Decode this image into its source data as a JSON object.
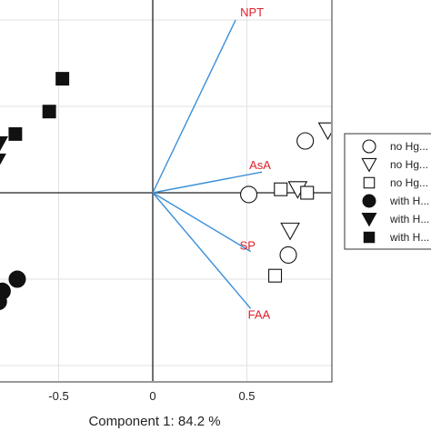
{
  "chart_data": {
    "type": "scatter",
    "title": "",
    "xlabel": "Component 1: 84.2 %",
    "ylabel": "",
    "xlim": [
      -0.82,
      0.92
    ],
    "ylim": [
      -1.0,
      1.0
    ],
    "x_ticks": [
      -0.5,
      0,
      0.5
    ],
    "x_tick_labels": [
      "-0.5",
      "0",
      "0.5"
    ],
    "grid": true,
    "legend_position": "right",
    "series": [
      {
        "label": "no Hg...",
        "marker": "circle-open",
        "points": [
          [
            0.81,
            0.3
          ],
          [
            0.51,
            -0.01
          ],
          [
            0.72,
            -0.36
          ]
        ]
      },
      {
        "label": "no Hg...",
        "marker": "triangle-down-open",
        "points": [
          [
            0.93,
            0.36
          ],
          [
            0.77,
            0.02
          ],
          [
            0.73,
            -0.22
          ]
        ]
      },
      {
        "label": "no Hg...",
        "marker": "square-open",
        "points": [
          [
            0.68,
            0.02
          ],
          [
            0.82,
            0.0
          ],
          [
            0.65,
            -0.48
          ]
        ]
      },
      {
        "label": "with H...",
        "marker": "circle-filled",
        "points": [
          [
            -0.72,
            -0.5
          ],
          [
            -0.8,
            -0.57
          ],
          [
            -0.82,
            -0.63
          ]
        ]
      },
      {
        "label": "with H...",
        "marker": "triangle-down-filled",
        "points": [
          [
            -0.82,
            0.28
          ],
          [
            -0.83,
            0.18
          ]
        ]
      },
      {
        "label": "with H...",
        "marker": "square-filled",
        "points": [
          [
            -0.48,
            0.66
          ],
          [
            -0.55,
            0.47
          ],
          [
            -0.73,
            0.34
          ]
        ]
      }
    ],
    "loadings": [
      {
        "label": "NPT",
        "x": 0.44,
        "y": 1.0
      },
      {
        "label": "AsA",
        "x": 0.58,
        "y": 0.12
      },
      {
        "label": "SP",
        "x": 0.52,
        "y": -0.34
      },
      {
        "label": "FAA",
        "x": 0.52,
        "y": -0.67
      }
    ],
    "colors": {
      "vector": "#3b8fd9",
      "vector_label": "#e0202a",
      "grid": "#e2e2e2",
      "axis": "#333333"
    }
  }
}
